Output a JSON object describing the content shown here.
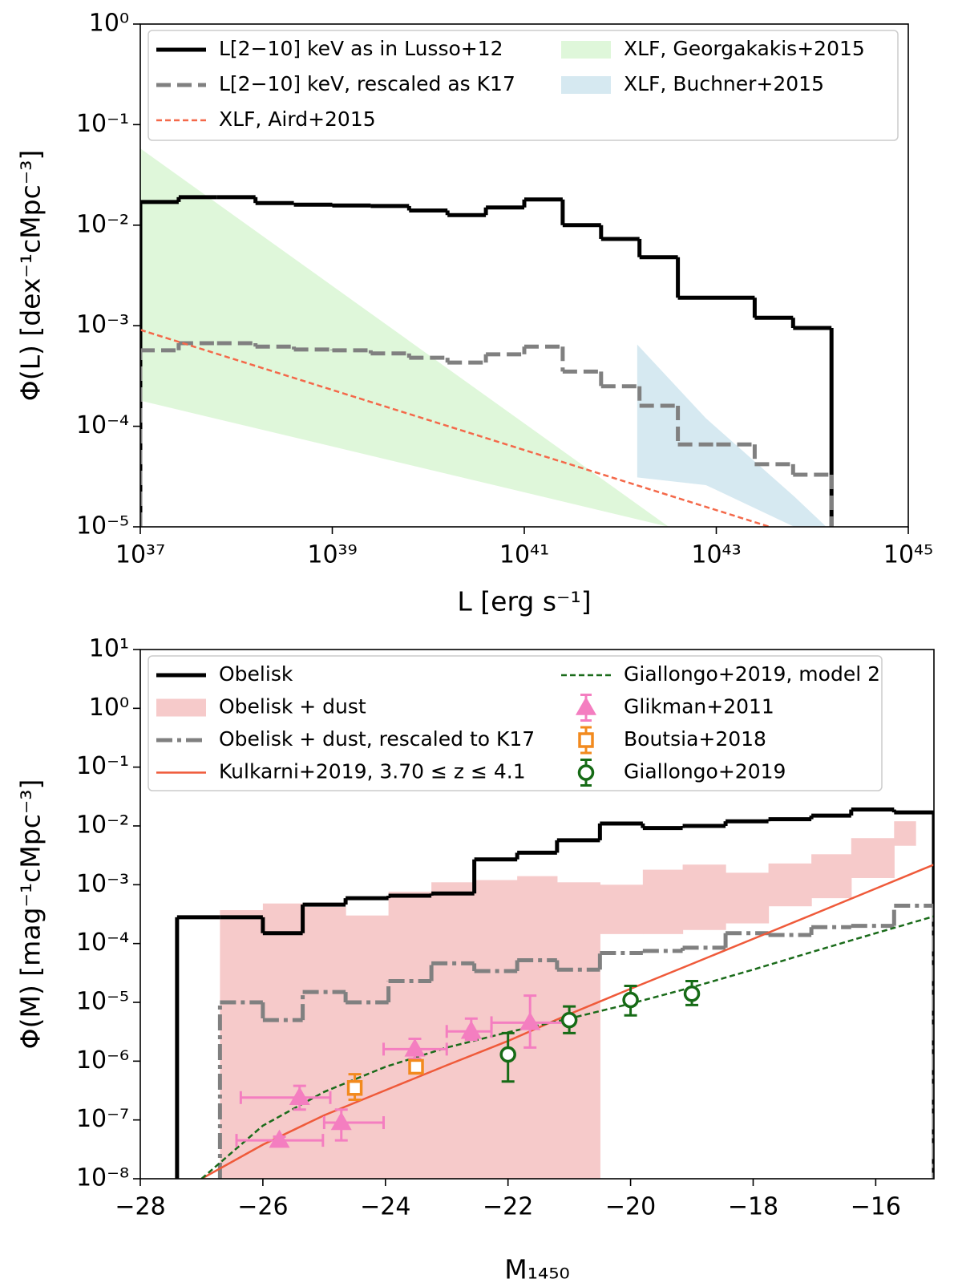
{
  "chart_data": [
    {
      "type": "step",
      "xscale": "log",
      "yscale": "log",
      "xlabel": "L [erg s⁻¹]",
      "ylabel": "Φ(L) [dex⁻¹cMpc⁻³]",
      "xlim": [
        1e+37,
        1e+45
      ],
      "ylim": [
        1e-05,
        1
      ],
      "xticks": [
        {
          "value": 1e+37,
          "label": "10³⁷"
        },
        {
          "value": 1e+39,
          "label": "10³⁹"
        },
        {
          "value": 1e+41,
          "label": "10⁴¹"
        },
        {
          "value": 1e+43,
          "label": "10⁴³"
        },
        {
          "value": 1e+45,
          "label": "10⁴⁵"
        }
      ],
      "yticks": [
        {
          "value": 1,
          "label": "10⁰"
        },
        {
          "value": 0.1,
          "label": "10⁻¹"
        },
        {
          "value": 0.01,
          "label": "10⁻²"
        },
        {
          "value": 0.001,
          "label": "10⁻³"
        },
        {
          "value": 0.0001,
          "label": "10⁻⁴"
        },
        {
          "value": 1e-05,
          "label": "10⁻⁵"
        }
      ],
      "series": [
        {
          "name": "L[2−10] keV as in Lusso+12",
          "kind": "step",
          "color": "#000000",
          "linewidth": 5,
          "linestyle": "solid",
          "bins": [
            1e+37,
            2.512e+37,
            6.31e+37,
            1.585e+38,
            3.981e+38,
            1e+39,
            2.512e+39,
            6.31e+39,
            1.585e+40,
            3.981e+40,
            1e+41,
            2.512e+41,
            6.31e+41,
            1.585e+42,
            3.981e+42,
            1e+43,
            2.512e+43,
            6.31e+43,
            1.585e+44
          ],
          "values": [
            0.017,
            0.019,
            0.019,
            0.0166,
            0.016,
            0.0157,
            0.0155,
            0.014,
            0.0126,
            0.015,
            0.018,
            0.01,
            0.0073,
            0.0048,
            0.0019,
            0.0019,
            0.0012,
            0.00095
          ]
        },
        {
          "name": "L[2−10] keV, rescaled as K17",
          "kind": "step",
          "color": "#808080",
          "linewidth": 5,
          "linestyle": "dashed",
          "bins": [
            1e+37,
            2.512e+37,
            6.31e+37,
            1.585e+38,
            3.981e+38,
            1e+39,
            2.512e+39,
            6.31e+39,
            1.585e+40,
            3.981e+40,
            1e+41,
            2.512e+41,
            6.31e+41,
            1.585e+42,
            3.981e+42,
            1e+43,
            2.512e+43,
            6.31e+43,
            1.585e+44
          ],
          "values": [
            0.00057,
            0.00067,
            0.00067,
            0.00062,
            0.00058,
            0.00057,
            0.00053,
            0.00048,
            0.00043,
            0.00052,
            0.00062,
            0.00035,
            0.00025,
            0.00016,
            6.6e-05,
            6.6e-05,
            4.2e-05,
            3.3e-05
          ]
        },
        {
          "name": "XLF, Aird+2015",
          "kind": "line",
          "color": "#f4694a",
          "linewidth": 2.5,
          "linestyle": "dashed",
          "x": [
            1e+37,
            3.6e+43
          ],
          "values": [
            0.00091,
            1e-05
          ]
        },
        {
          "name": "XLF, Georgakakis+2015",
          "kind": "band",
          "color": "#dff7da",
          "x": [
            1e+37,
            3.2e+42
          ],
          "lower": [
            0.00018,
            1e-05
          ],
          "upper": [
            0.058,
            1e-05
          ]
        },
        {
          "name": "XLF, Buchner+2015",
          "kind": "band",
          "color": "#d6e9f1",
          "x": [
            1.5e+42,
            7.8e+42,
            6.5e+43,
            1.4e+44
          ],
          "lower": [
            3.1e-05,
            2.6e-05,
            1e-05,
            1e-05
          ],
          "upper": [
            0.00065,
            0.00012,
            2e-05,
            1e-05
          ]
        }
      ]
    },
    {
      "type": "step",
      "xscale": "linear",
      "yscale": "log",
      "xlabel": "M₁₄₅₀",
      "ylabel": "Φ(M) [mag⁻¹cMpc⁻³]",
      "xlim": [
        -28,
        -15.05
      ],
      "ylim": [
        1e-08,
        10
      ],
      "xticks": [
        {
          "value": -28,
          "label": "−28"
        },
        {
          "value": -26,
          "label": "−26"
        },
        {
          "value": -24,
          "label": "−24"
        },
        {
          "value": -22,
          "label": "−22"
        },
        {
          "value": -20,
          "label": "−20"
        },
        {
          "value": -18,
          "label": "−18"
        },
        {
          "value": -16,
          "label": "−16"
        }
      ],
      "yticks": [
        {
          "value": 10,
          "label": "10¹"
        },
        {
          "value": 1,
          "label": "10⁰"
        },
        {
          "value": 0.1,
          "label": "10⁻¹"
        },
        {
          "value": 0.01,
          "label": "10⁻²"
        },
        {
          "value": 0.001,
          "label": "10⁻³"
        },
        {
          "value": 0.0001,
          "label": "10⁻⁴"
        },
        {
          "value": 1e-05,
          "label": "10⁻⁵"
        },
        {
          "value": 1e-06,
          "label": "10⁻⁶"
        },
        {
          "value": 1e-07,
          "label": "10⁻⁷"
        },
        {
          "value": 1e-08,
          "label": "10⁻⁸"
        }
      ],
      "series": [
        {
          "name": "Obelisk",
          "kind": "step",
          "color": "#000000",
          "linewidth": 5,
          "linestyle": "solid",
          "bins": [
            -27.4,
            -26.7,
            -26.0,
            -25.35,
            -24.65,
            -23.95,
            -23.25,
            -22.55,
            -21.85,
            -21.2,
            -20.5,
            -19.8,
            -19.15,
            -18.45,
            -17.75,
            -17.05,
            -16.4,
            -15.7,
            -15.05
          ],
          "values": [
            0.00028,
            0.00028,
            0.00015,
            0.00046,
            0.00059,
            0.00065,
            0.00071,
            0.0027,
            0.0035,
            0.0057,
            0.011,
            0.0092,
            0.01,
            0.012,
            0.013,
            0.015,
            0.019,
            0.017
          ]
        },
        {
          "name": "Obelisk + dust",
          "kind": "binband",
          "color": "#f6caca",
          "bins": [
            -26.7,
            -26.0,
            -25.35,
            -24.65,
            -23.95,
            -23.25,
            -22.55,
            -21.85,
            -21.2,
            -20.5,
            -19.8,
            -19.15,
            -18.45,
            -17.75,
            -17.05,
            -16.4,
            -15.7,
            -15.35
          ],
          "lower": [
            1e-08,
            1e-08,
            1e-08,
            1e-08,
            1e-08,
            1e-08,
            1e-08,
            1e-08,
            1e-08,
            0.000145,
            0.000145,
            0.00017,
            0.00022,
            0.00043,
            0.00059,
            0.0013,
            0.0046
          ],
          "upper": [
            0.00037,
            0.00048,
            0.00042,
            0.0003,
            0.00076,
            0.0011,
            0.0012,
            0.0014,
            0.0011,
            0.001,
            0.0018,
            0.0022,
            0.0016,
            0.0023,
            0.0033,
            0.0062,
            0.012
          ]
        },
        {
          "name": "Obelisk + dust, rescaled to K17",
          "kind": "step",
          "color": "#808080",
          "linewidth": 5,
          "linestyle": "dashdot",
          "bins": [
            -27.4,
            -26.7,
            -26.0,
            -25.35,
            -24.65,
            -23.95,
            -23.25,
            -22.55,
            -21.85,
            -21.2,
            -20.5,
            -19.8,
            -19.15,
            -18.45,
            -17.75,
            -17.05,
            -16.4,
            -15.7,
            -15.05
          ],
          "values": [
            null,
            1e-05,
            5e-06,
            1.5e-05,
            1e-05,
            2.3e-05,
            4.6e-05,
            3.4e-05,
            5.2e-05,
            3.6e-05,
            6.9e-05,
            7.5e-05,
            8.5e-05,
            0.00015,
            0.00014,
            0.00019,
            0.0002,
            0.00044
          ]
        },
        {
          "name": "Kulkarni+2019, 3.70 ≤ z ≤ 4.1",
          "kind": "line",
          "color": "#ef5a3a",
          "linewidth": 2.5,
          "linestyle": "solid",
          "x": [
            -27,
            -26,
            -25,
            -24,
            -23,
            -22,
            -21,
            -20,
            -19,
            -18,
            -17,
            -16,
            -15.05
          ],
          "values": [
            1e-08,
            3.8e-08,
            1.2e-07,
            3.2e-07,
            8.5e-07,
            2.2e-06,
            6.3e-06,
            1.7e-05,
            4.5e-05,
            0.00012,
            0.00032,
            0.00086,
            0.0022
          ]
        },
        {
          "name": "Giallongo+2019, model 2",
          "kind": "line",
          "color": "#1a6b1a",
          "linewidth": 2.5,
          "linestyle": "dashed",
          "x": [
            -27,
            -26,
            -25,
            -24,
            -23,
            -22,
            -21,
            -20,
            -19,
            -18,
            -17,
            -16,
            -15.05
          ],
          "values": [
            1e-08,
            8e-08,
            3e-07,
            8e-07,
            1.7e-06,
            3.1e-06,
            5.3e-06,
            9.5e-06,
            1.8e-05,
            3.6e-05,
            7.4e-05,
            0.00015,
            0.00029
          ]
        },
        {
          "name": "Glikman+2011",
          "kind": "points",
          "marker": "triangle",
          "filled": true,
          "color": "#f47ec0",
          "x": [
            -25.73,
            -25.4,
            -24.72,
            -23.52,
            -22.6,
            -21.64
          ],
          "values": [
            4.5e-08,
            2.4e-07,
            9e-08,
            1.6e-06,
            3.2e-06,
            4.5e-06
          ],
          "ylow": [
            3.8e-08,
            1.5e-07,
            4.5e-08,
            1.1e-06,
            2.3e-06,
            1.7e-06
          ],
          "yhigh": [
            5.2e-08,
            3.8e-07,
            1.5e-07,
            2.4e-06,
            5.3e-06,
            1.3e-05
          ],
          "xlow": [
            -26.43,
            -26.36,
            -25.0,
            -24.03,
            -23.0,
            -22.27
          ],
          "xhigh": [
            -25.02,
            -24.9,
            -24.03,
            -23.0,
            -22.27,
            -21.0
          ]
        },
        {
          "name": "Boutsia+2018",
          "kind": "points",
          "marker": "square",
          "filled": false,
          "color": "#f28a1e",
          "x": [
            -24.5,
            -23.5
          ],
          "values": [
            3.5e-07,
            8e-07
          ],
          "ylow": [
            2.2e-07,
            6.5e-07
          ],
          "yhigh": [
            6e-07,
            9.8e-07
          ]
        },
        {
          "name": "Giallongo+2019",
          "kind": "points",
          "marker": "circle",
          "filled": false,
          "color": "#166b16",
          "x": [
            -22,
            -21,
            -20,
            -19
          ],
          "values": [
            1.3e-06,
            5e-06,
            1.1e-05,
            1.4e-05
          ],
          "ylow": [
            4.5e-07,
            3e-06,
            6e-06,
            9e-06
          ],
          "yhigh": [
            3e-06,
            8.5e-06,
            1.9e-05,
            2.3e-05
          ]
        }
      ]
    }
  ]
}
